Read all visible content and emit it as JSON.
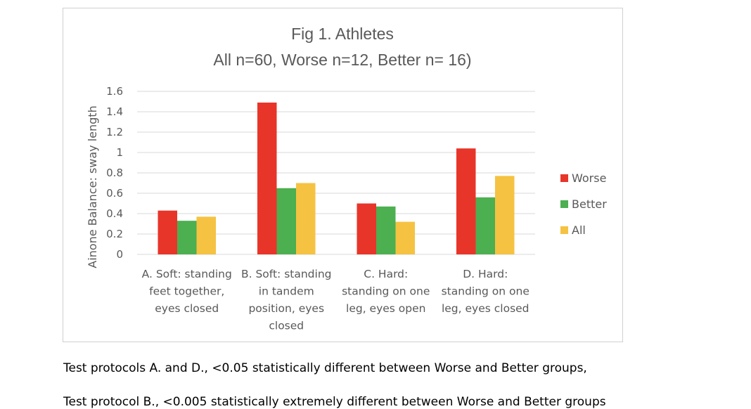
{
  "chart_data": {
    "type": "bar",
    "title": "Fig 1. Athletes",
    "subtitle": "All n=60, Worse n=12, Better n= 16)",
    "ylabel": "Ainone Balance: sway length",
    "xlabel": "",
    "ylim": [
      0,
      1.6
    ],
    "yticks": [
      "0",
      "0.2",
      "0.4",
      "0.6",
      "0.8",
      "1",
      "1.2",
      "1.4",
      "1.6"
    ],
    "grid": true,
    "legend_position": "right",
    "categories": [
      [
        "A. Soft: standing",
        "feet together,",
        "eyes closed"
      ],
      [
        "B. Soft: standing",
        "in tandem",
        "position, eyes",
        "closed"
      ],
      [
        "C. Hard:",
        "standing on one",
        "leg, eyes open"
      ],
      [
        "D. Hard:",
        "standing on one",
        "leg, eyes closed"
      ]
    ],
    "series": [
      {
        "name": "Worse",
        "color": "#e8352a",
        "values": [
          0.43,
          1.49,
          0.5,
          1.04
        ]
      },
      {
        "name": "Better",
        "color": "#4caf50",
        "values": [
          0.33,
          0.65,
          0.47,
          0.56
        ]
      },
      {
        "name": "All",
        "color": "#f5c242",
        "values": [
          0.37,
          0.7,
          0.32,
          0.77
        ]
      }
    ]
  },
  "notes": [
    "Test protocols A. and D., <0.05 statistically different between Worse and Better groups,",
    "Test protocol B., <0.005 statistically extremely different between Worse and Better groups"
  ]
}
